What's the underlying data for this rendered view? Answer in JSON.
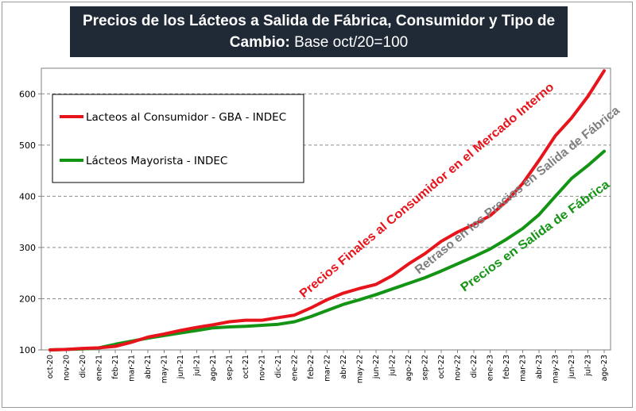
{
  "title": {
    "bold_part": "Precios de los Lácteos a Salida de Fábrica, Consumidor  y Tipo de Cambio:",
    "normal_part": "Base oct/20=100"
  },
  "chart_data": {
    "type": "line",
    "ylim": [
      100,
      650
    ],
    "yticks": [
      100,
      200,
      300,
      400,
      500,
      600
    ],
    "grid": "horizontal dashed",
    "legend_position": "top-left",
    "x": [
      "oct-20",
      "nov-20",
      "dic-20",
      "ene-21",
      "feb-21",
      "mar-21",
      "abr-21",
      "may-21",
      "jun-21",
      "jul-21",
      "ago-21",
      "sep-21",
      "oct-21",
      "nov-21",
      "dic-21",
      "ene-22",
      "feb-22",
      "mar-22",
      "abr-22",
      "may-22",
      "jun-22",
      "jul-22",
      "ago-22",
      "sep-22",
      "oct-22",
      "nov-22",
      "dic-22",
      "ene-23",
      "feb-23",
      "mar-23",
      "abr-23",
      "may-23",
      "jun-23",
      "jul-23",
      "ago-23"
    ],
    "series": [
      {
        "name": "Lacteos al Consumidor - GBA - INDEC",
        "color": "#e8141b",
        "values": [
          100,
          101,
          103,
          104,
          107,
          115,
          125,
          131,
          138,
          144,
          149,
          155,
          158,
          158,
          163,
          168,
          182,
          198,
          211,
          220,
          228,
          245,
          268,
          288,
          312,
          330,
          345,
          362,
          390,
          425,
          470,
          518,
          553,
          595,
          645
        ]
      },
      {
        "name": "Lácteos Mayorista - INDEC",
        "color": "#149414",
        "values": [
          100,
          101,
          102,
          104,
          111,
          117,
          123,
          128,
          133,
          138,
          143,
          145,
          146,
          148,
          150,
          155,
          165,
          177,
          189,
          198,
          208,
          219,
          230,
          241,
          254,
          268,
          282,
          297,
          316,
          337,
          364,
          400,
          435,
          460,
          488
        ]
      }
    ],
    "annotations": [
      {
        "text": "Precios Finales al Consumidor en el Mercado Interno",
        "color": "#e8141b"
      },
      {
        "text": "Retraso en los Precios en Salida de Fábrica",
        "color": "#7f7f7f"
      },
      {
        "text": "Precios en Salida de Fábrica",
        "color": "#149414"
      }
    ]
  }
}
